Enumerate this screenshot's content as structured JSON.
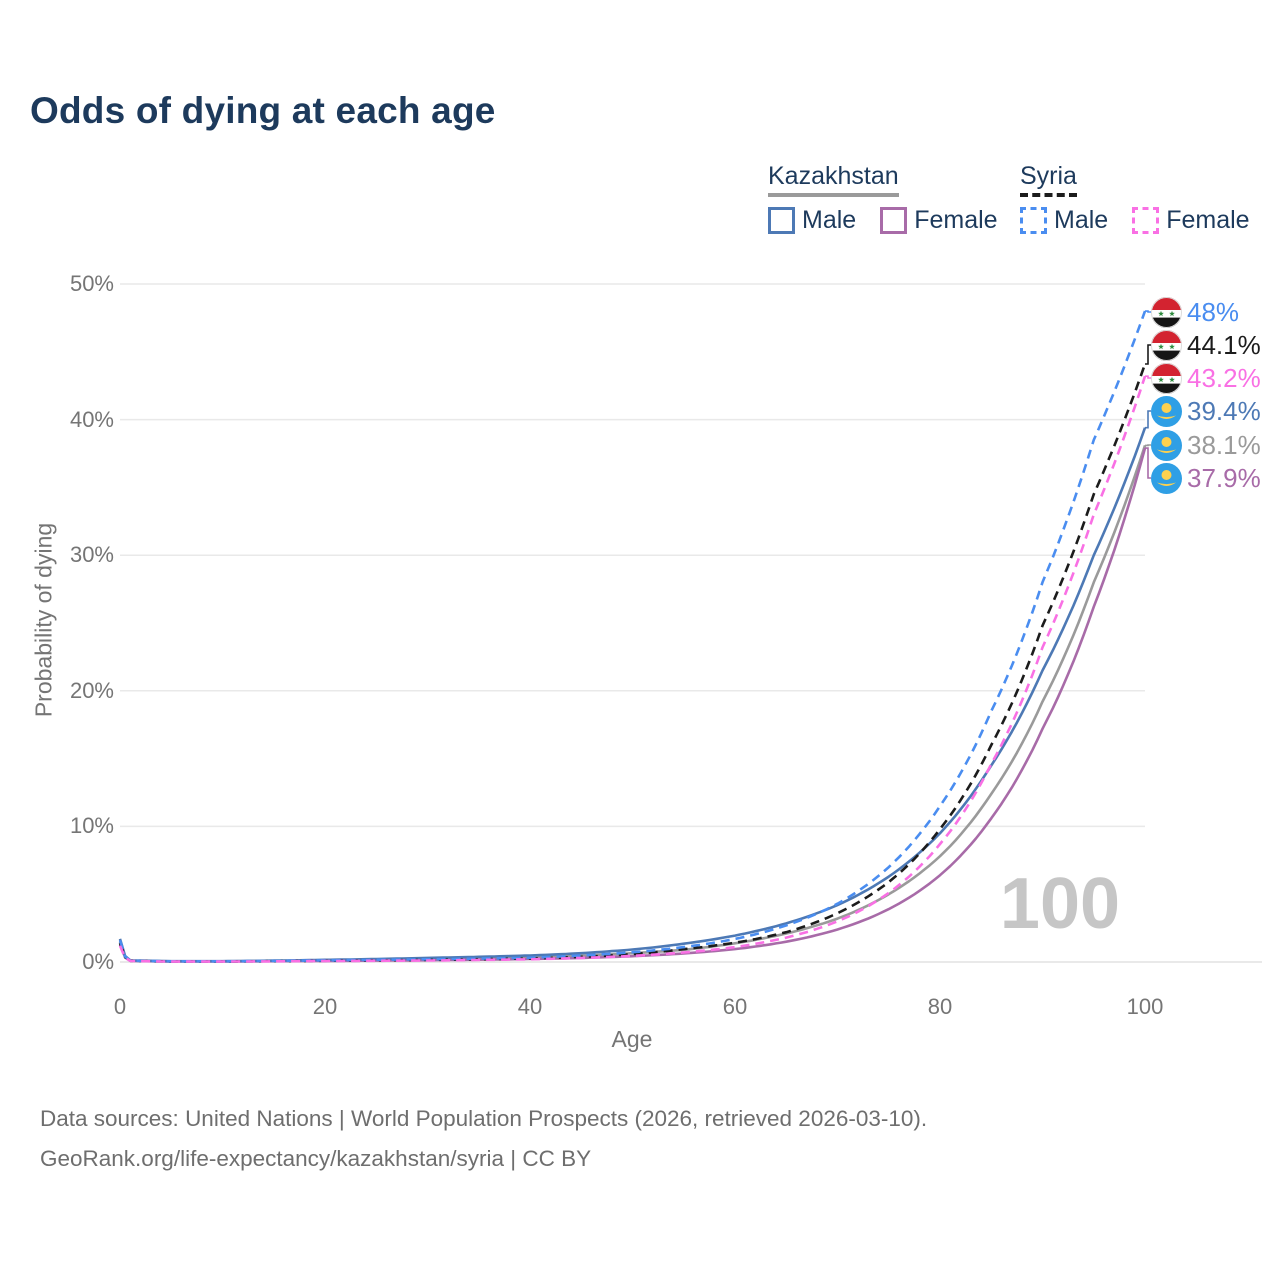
{
  "title": "Odds of dying at each age",
  "legend": {
    "groups": [
      {
        "label": "Kazakhstan",
        "line_style": "solid",
        "underline_color": "#9a9a9a",
        "items": [
          {
            "label": "Male",
            "color": "#4d79b5"
          },
          {
            "label": "Female",
            "color": "#a86ba8"
          }
        ]
      },
      {
        "label": "Syria",
        "line_style": "dashed",
        "underline_color": "#1c1c1c",
        "items": [
          {
            "label": "Male",
            "color": "#4a8df0"
          },
          {
            "label": "Female",
            "color": "#f970e4"
          }
        ]
      }
    ]
  },
  "watermark": "100",
  "chart_data": {
    "type": "line",
    "title": "Odds of dying at each age",
    "xlabel": "Age",
    "ylabel": "Probability of dying",
    "xlim": [
      0,
      100
    ],
    "ylim": [
      0,
      50
    ],
    "grid": "horizontal",
    "legend_position": "top-right",
    "unit": "percent",
    "x_ticks": [
      {
        "value": 0,
        "label": "0"
      },
      {
        "value": 20,
        "label": "20"
      },
      {
        "value": 40,
        "label": "40"
      },
      {
        "value": 60,
        "label": "60"
      },
      {
        "value": 80,
        "label": "80"
      },
      {
        "value": 100,
        "label": "100"
      }
    ],
    "y_ticks": [
      {
        "value": 0,
        "label": "0%"
      },
      {
        "value": 10,
        "label": "10%"
      },
      {
        "value": 20,
        "label": "20%"
      },
      {
        "value": 30,
        "label": "30%"
      },
      {
        "value": 40,
        "label": "40%"
      },
      {
        "value": 50,
        "label": "50%"
      }
    ],
    "ages": [
      0,
      1,
      5,
      10,
      15,
      20,
      25,
      30,
      35,
      40,
      45,
      50,
      55,
      60,
      65,
      70,
      75,
      80,
      85,
      90,
      95,
      100
    ],
    "series": [
      {
        "name": "Kazakhstan Both sexes",
        "country": "Kazakhstan",
        "sex": "Both sexes",
        "color": "#9a9a9a",
        "dashed": false,
        "flag": "kazakhstan",
        "end_label": "38.1%",
        "values": [
          1.5,
          0.1,
          0.05,
          0.05,
          0.08,
          0.12,
          0.16,
          0.21,
          0.27,
          0.34,
          0.46,
          0.65,
          0.9,
          1.38,
          2.1,
          3.2,
          5.0,
          7.8,
          12.4,
          19.2,
          28.0,
          38.1
        ]
      },
      {
        "name": "Kazakhstan Female",
        "country": "Kazakhstan",
        "sex": "Female",
        "color": "#a86ba8",
        "dashed": false,
        "flag": "kazakhstan",
        "end_label": "37.9%",
        "values": [
          1.3,
          0.09,
          0.04,
          0.04,
          0.06,
          0.08,
          0.1,
          0.13,
          0.17,
          0.22,
          0.3,
          0.43,
          0.63,
          0.95,
          1.5,
          2.4,
          3.9,
          6.4,
          10.6,
          17.2,
          26.2,
          37.9
        ]
      },
      {
        "name": "Kazakhstan Male",
        "country": "Kazakhstan",
        "sex": "Male",
        "color": "#4d79b5",
        "dashed": false,
        "flag": "kazakhstan",
        "end_label": "39.4%",
        "values": [
          1.7,
          0.12,
          0.06,
          0.06,
          0.1,
          0.16,
          0.22,
          0.3,
          0.38,
          0.48,
          0.65,
          0.92,
          1.35,
          1.95,
          2.85,
          4.2,
          6.3,
          9.5,
          14.5,
          21.5,
          30.0,
          39.4
        ]
      },
      {
        "name": "Syria Both sexes",
        "country": "Syria",
        "sex": "Both sexes",
        "color": "#1c1c1c",
        "dashed": true,
        "flag": "syria",
        "end_label": "44.1%",
        "values": [
          1.4,
          0.09,
          0.04,
          0.04,
          0.06,
          0.09,
          0.12,
          0.15,
          0.2,
          0.26,
          0.38,
          0.58,
          0.95,
          1.42,
          2.2,
          3.6,
          5.9,
          9.8,
          16.0,
          24.8,
          34.5,
          44.1
        ]
      },
      {
        "name": "Syria Male",
        "country": "Syria",
        "sex": "Male",
        "color": "#4a8df0",
        "dashed": true,
        "flag": "syria",
        "end_label": "48%",
        "values": [
          1.6,
          0.1,
          0.05,
          0.05,
          0.08,
          0.12,
          0.16,
          0.2,
          0.25,
          0.32,
          0.48,
          0.72,
          1.1,
          1.7,
          2.7,
          4.3,
          7.0,
          11.5,
          18.5,
          28.0,
          38.5,
          48.0
        ]
      },
      {
        "name": "Syria Female",
        "country": "Syria",
        "sex": "Female",
        "color": "#f970e4",
        "dashed": true,
        "flag": "syria",
        "end_label": "43.2%",
        "values": [
          1.2,
          0.08,
          0.03,
          0.03,
          0.05,
          0.07,
          0.09,
          0.11,
          0.15,
          0.2,
          0.3,
          0.45,
          0.7,
          1.1,
          1.8,
          3.0,
          5.1,
          8.7,
          14.6,
          23.2,
          33.0,
          43.2
        ]
      }
    ]
  },
  "footer": {
    "line1": "Data sources: United Nations | World Population Prospects (2026, retrieved 2026-03-10).",
    "line2": "GeoRank.org/life-expectancy/kazakhstan/syria | CC BY"
  }
}
